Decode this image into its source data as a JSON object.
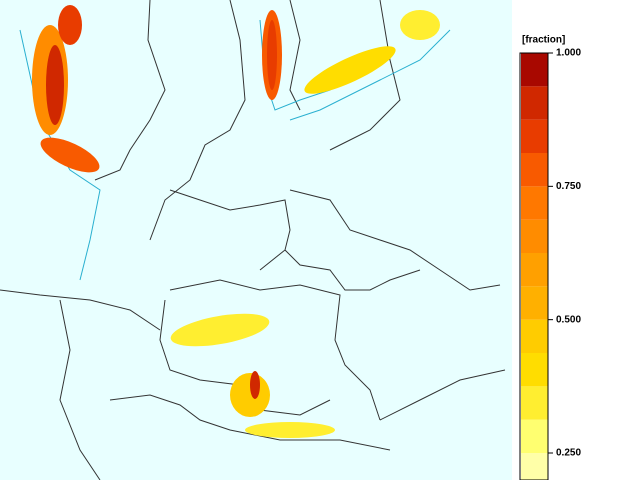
{
  "legend": {
    "title": "[fraction]",
    "levels": [
      0.1875,
      0.25,
      0.3125,
      0.375,
      0.4375,
      0.5,
      0.5625,
      0.625,
      0.6875,
      0.75,
      0.8125,
      0.875,
      0.9375,
      1.0
    ],
    "colors": [
      "#ffffa8",
      "#ffff70",
      "#ffee30",
      "#ffdd00",
      "#ffcc00",
      "#ffb000",
      "#ffa000",
      "#ff8c00",
      "#ff7800",
      "#f85a00",
      "#e83c00",
      "#d02800",
      "#a80800"
    ],
    "ticks": [
      {
        "value": 1.0,
        "label": "1.000"
      },
      {
        "value": 0.75,
        "label": "0.750"
      },
      {
        "value": 0.5,
        "label": "0.500"
      },
      {
        "value": 0.25,
        "label": "0.250"
      }
    ]
  }
}
